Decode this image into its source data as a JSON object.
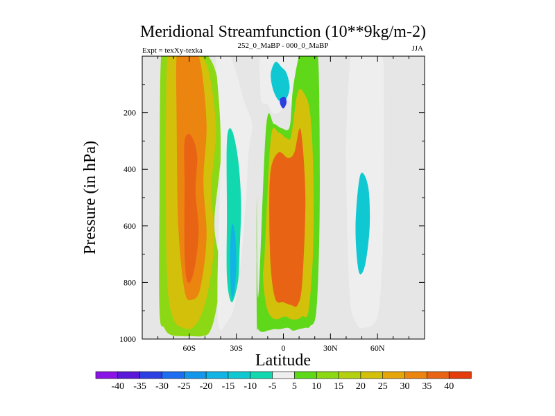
{
  "chart_data": {
    "type": "heatmap",
    "title": "Meridional Streamfunction (10**9kg/m-2)",
    "subtitle_left": "Expt = texXy-texka",
    "subtitle_center": "252_0_MaBP - 000_0_MaBP",
    "subtitle_right": "JJA",
    "xlabel": "Latitude",
    "ylabel": "Pressure (in hPa)",
    "xlim": [
      -90,
      90
    ],
    "ylim": [
      1000,
      0
    ],
    "x_ticks": [
      {
        "value": -60,
        "label": "60S"
      },
      {
        "value": -30,
        "label": "30S"
      },
      {
        "value": 0,
        "label": "0"
      },
      {
        "value": 30,
        "label": "30N"
      },
      {
        "value": 60,
        "label": "60N"
      }
    ],
    "y_ticks": [
      {
        "value": 200,
        "label": "200"
      },
      {
        "value": 400,
        "label": "400"
      },
      {
        "value": 600,
        "label": "600"
      },
      {
        "value": 800,
        "label": "800"
      },
      {
        "value": 1000,
        "label": "1000"
      }
    ],
    "background_color": "#e6e6e6",
    "colorbar": {
      "colors": [
        "#8a14e6",
        "#5a18d8",
        "#2c40e2",
        "#1e6cf0",
        "#1496ea",
        "#12b4e6",
        "#10c8d2",
        "#12d8b0",
        "#eeeeee",
        "#5ed818",
        "#8cd814",
        "#b4d010",
        "#d2c00a",
        "#e6a60a",
        "#ec8410",
        "#e86414",
        "#e43c0c"
      ],
      "labels": [
        "-40",
        "-35",
        "-30",
        "-25",
        "-20",
        "-15",
        "-10",
        "-5",
        "5",
        "10",
        "15",
        "20",
        "25",
        "30",
        "35",
        "40"
      ]
    },
    "contours": [
      {
        "level": 10,
        "lat": [
          -78,
          -74,
          -68,
          -62,
          -55,
          -48,
          -42,
          -38,
          -41,
          -44,
          -40,
          -43,
          -47,
          -52,
          -58,
          -65,
          -72,
          -76,
          -79,
          -79
        ],
        "plow": [
          0,
          0,
          0,
          0,
          0,
          0,
          80,
          250,
          420,
          600,
          760,
          900,
          975,
          990,
          990,
          990,
          985,
          960,
          900,
          500
        ]
      },
      {
        "level": 20,
        "lat": [
          -74,
          -70,
          -65,
          -58,
          -52,
          -47,
          -43,
          -46,
          -44,
          -47,
          -52,
          -58,
          -64,
          -70,
          -74,
          -75
        ],
        "plow": [
          0,
          0,
          0,
          0,
          0,
          70,
          260,
          470,
          640,
          800,
          910,
          960,
          960,
          930,
          800,
          400
        ]
      },
      {
        "level": 30,
        "lat": [
          -68,
          -64,
          -58,
          -53,
          -49,
          -51,
          -49,
          -53,
          -58,
          -63,
          -67,
          -68
        ],
        "plow": [
          0,
          0,
          0,
          20,
          240,
          440,
          640,
          820,
          860,
          830,
          600,
          250
        ]
      },
      {
        "level": 35,
        "lat": [
          -63,
          -59,
          -55,
          -56,
          -54,
          -57,
          -61,
          -63,
          -63
        ],
        "plow": [
          300,
          280,
          350,
          480,
          620,
          760,
          800,
          700,
          450
        ]
      },
      {
        "level": -5,
        "lat": [
          -43,
          -38,
          -34,
          -30,
          -25,
          -20,
          -22,
          -24,
          -27,
          -31,
          -36,
          -41,
          -42,
          -40
        ],
        "plow": [
          0,
          0,
          0,
          60,
          160,
          240,
          330,
          520,
          720,
          880,
          940,
          960,
          800,
          300
        ]
      },
      {
        "level": -10,
        "lat": [
          -36,
          -33,
          -29,
          -27,
          -28,
          -29,
          -33,
          -36,
          -36
        ],
        "plow": [
          300,
          260,
          360,
          520,
          700,
          800,
          870,
          780,
          560
        ]
      },
      {
        "level": -20,
        "lat": [
          -33,
          -31,
          -30,
          -31,
          -33,
          -34
        ],
        "plow": [
          600,
          620,
          720,
          820,
          850,
          720
        ]
      },
      {
        "level": -5,
        "lat": [
          -15,
          -12,
          -8,
          8,
          12,
          13,
          9,
          6,
          3,
          0,
          -3,
          -7,
          -10,
          -14,
          -15
        ],
        "plow": [
          0,
          0,
          0,
          0,
          0,
          90,
          200,
          190,
          150,
          180,
          200,
          200,
          170,
          160,
          80
        ]
      },
      {
        "level": -15,
        "lat": [
          -8,
          -5,
          -1,
          2,
          4,
          2,
          -1,
          -4,
          -7
        ],
        "plow": [
          60,
          20,
          40,
          60,
          110,
          150,
          160,
          150,
          110
        ]
      },
      {
        "level": -35,
        "lat": [
          -2,
          1,
          2,
          0,
          -2
        ],
        "plow": [
          150,
          145,
          165,
          185,
          170
        ]
      },
      {
        "level": 5,
        "lat": [
          -16,
          -11,
          -6,
          -1,
          4,
          6,
          10,
          13,
          17,
          19,
          22,
          23,
          23,
          21,
          17,
          14,
          10,
          6,
          3,
          -2,
          -6,
          -10,
          -13,
          -16,
          -17,
          -17
        ],
        "plow": [
          850,
          250,
          240,
          255,
          250,
          120,
          0,
          0,
          0,
          0,
          0,
          220,
          600,
          900,
          955,
          960,
          965,
          970,
          960,
          965,
          965,
          970,
          975,
          965,
          920,
          500
        ]
      },
      {
        "level": 20,
        "lat": [
          -12,
          -8,
          -3,
          2,
          5,
          9,
          13,
          17,
          19,
          19,
          16,
          12,
          9,
          5,
          1,
          -4,
          -8,
          -11,
          -13
        ],
        "plow": [
          700,
          290,
          270,
          290,
          280,
          130,
          130,
          200,
          400,
          680,
          900,
          920,
          930,
          930,
          920,
          930,
          920,
          880,
          780
        ]
      },
      {
        "level": 35,
        "lat": [
          -8,
          -3,
          3,
          7,
          11,
          14,
          12,
          9,
          5,
          0,
          -5,
          -8,
          -9
        ],
        "plow": [
          400,
          340,
          360,
          340,
          260,
          500,
          800,
          880,
          880,
          870,
          860,
          750,
          550
        ]
      },
      {
        "level": -5,
        "lat": [
          43,
          47,
          55,
          63,
          64,
          64,
          63,
          60,
          52,
          46,
          42,
          40
        ],
        "plow": [
          0,
          0,
          0,
          0,
          130,
          400,
          720,
          920,
          960,
          940,
          820,
          320
        ]
      },
      {
        "level": -15,
        "lat": [
          49,
          54,
          55,
          52,
          48,
          46
        ],
        "plow": [
          420,
          460,
          600,
          740,
          760,
          600
        ]
      }
    ]
  }
}
